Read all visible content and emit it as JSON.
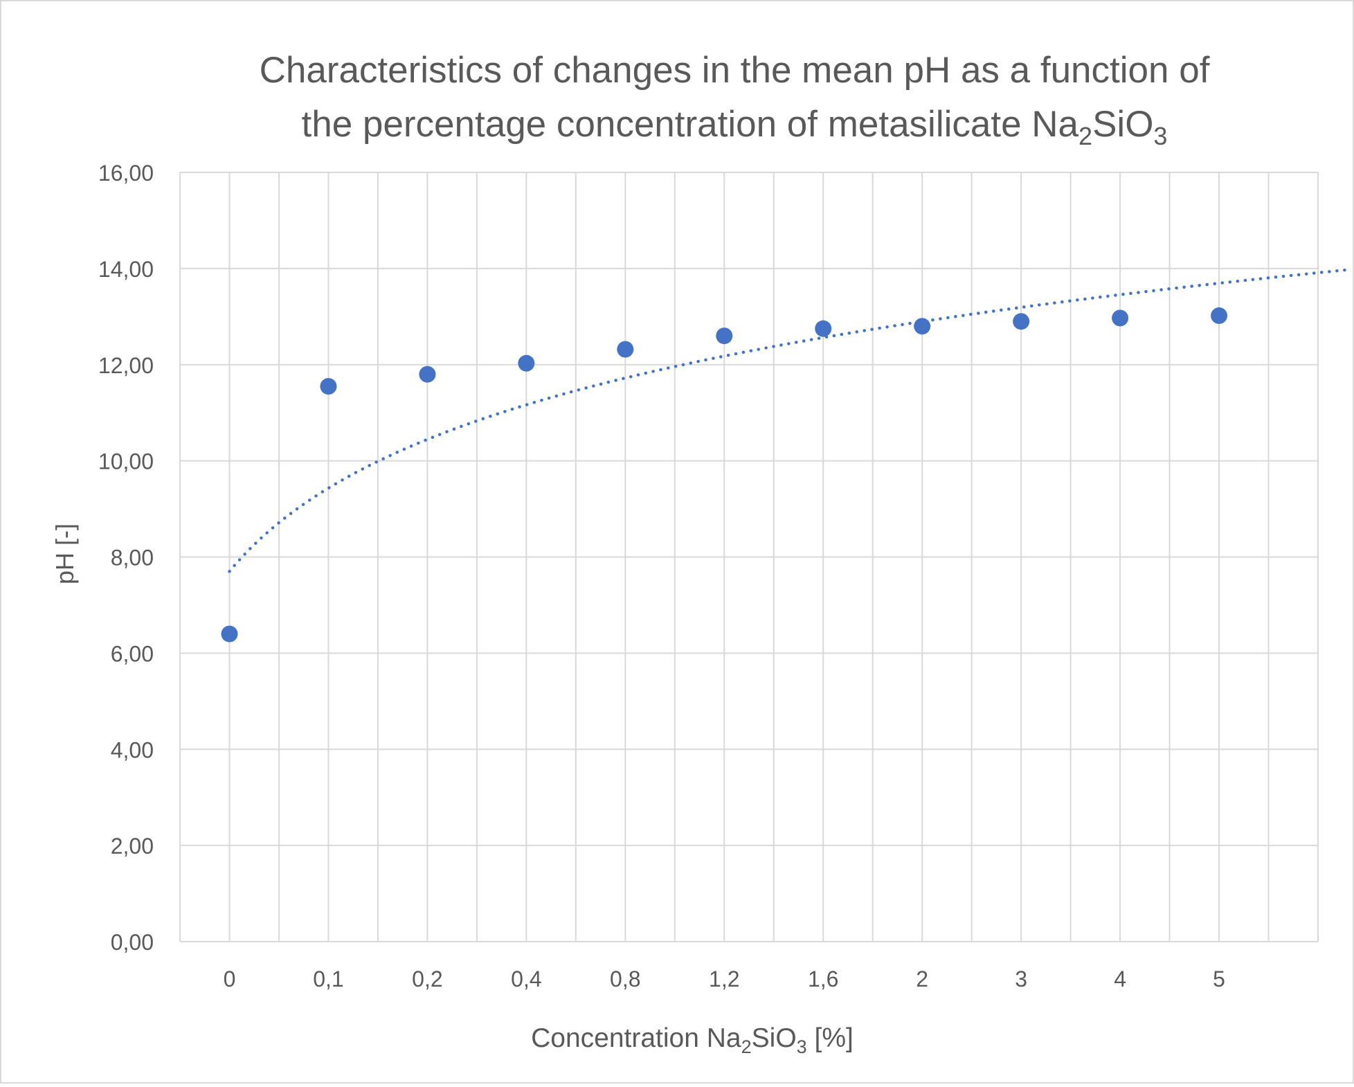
{
  "colors": {
    "marker": "#4472C4",
    "trendline": "#4472C4",
    "grid": "#D9D9D9",
    "text": "#595959",
    "border": "#D9D9D9"
  },
  "chart_data": {
    "type": "scatter",
    "title_line1": "Characteristics of changes in the mean pH as a function of",
    "title_line2_main": "the percentage concentration of metasilicate Na",
    "title_line2_sub2": "2",
    "title_line2_mid": "SiO",
    "title_line2_sub3": "3",
    "xlabel_main": "Concentration Na",
    "xlabel_sub2": "2",
    "xlabel_mid": "SiO",
    "xlabel_sub3": "3",
    "xlabel_end": " [%]",
    "ylabel": "pH [-]",
    "categories": [
      "0",
      "0,1",
      "0,2",
      "0,4",
      "0,8",
      "1,2",
      "1,6",
      "2",
      "3",
      "4",
      "5"
    ],
    "values": [
      6.4,
      11.55,
      11.8,
      12.03,
      12.32,
      12.6,
      12.75,
      12.8,
      12.9,
      12.97,
      13.02
    ],
    "y_ticks": [
      "0,00",
      "2,00",
      "4,00",
      "6,00",
      "8,00",
      "10,00",
      "12,00",
      "14,00",
      "16,00"
    ],
    "ylim": [
      0,
      16
    ],
    "trendline": {
      "type": "logarithmic",
      "a": 7.7,
      "b": 2.5,
      "x_start": 1,
      "x_end": 12.3
    },
    "grid": true,
    "legend": "none"
  }
}
